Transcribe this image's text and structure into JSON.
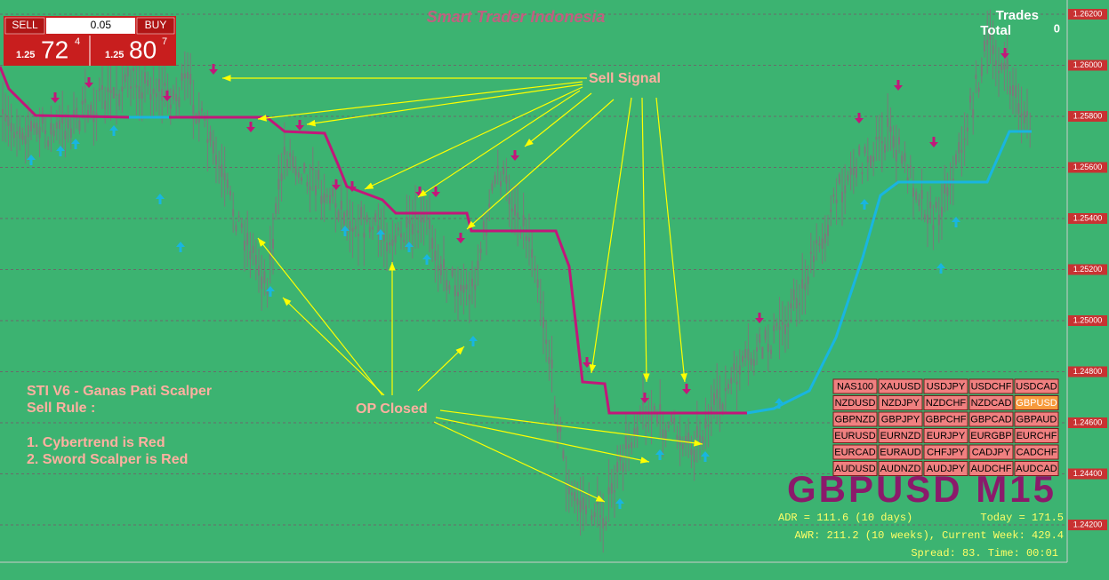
{
  "header": {
    "title": "Smart Trader Indonesia"
  },
  "trade_panel": {
    "sell": "SELL",
    "lot": "0.05",
    "buy": "BUY",
    "sell_price": {
      "big": "1.25",
      "main": "72",
      "small": "4"
    },
    "buy_price": {
      "big": "1.25",
      "main": "80",
      "small": "7"
    }
  },
  "trades": {
    "title": "Trades",
    "total_label": "Total",
    "total": "0"
  },
  "price_axis": [
    "1.26200",
    "1.26000",
    "1.25800",
    "1.25600",
    "1.25400",
    "1.25200",
    "1.25000",
    "1.24800",
    "1.24600",
    "1.24400",
    "1.24200"
  ],
  "annotations": {
    "sell_signal": "Sell Signal",
    "op_closed": "OP Closed"
  },
  "rules": {
    "title": "STI V6 - Ganas Pati Scalper",
    "subtitle": "Sell Rule :",
    "items": [
      "1. Cybertrend is Red",
      "2. Sword Scalper is Red"
    ]
  },
  "symbols": [
    [
      "NAS100",
      "XAUUSD",
      "USDJPY",
      "USDCHF",
      "USDCAD"
    ],
    [
      "NZDUSD",
      "NZDJPY",
      "NZDCHF",
      "NZDCAD",
      "GBPUSD"
    ],
    [
      "GBPNZD",
      "GBPJPY",
      "GBPCHF",
      "GBPCAD",
      "GBPAUD"
    ],
    [
      "EURUSD",
      "EURNZD",
      "EURJPY",
      "EURGBP",
      "EURCHF"
    ],
    [
      "EURCAD",
      "EURAUD",
      "CHFJPY",
      "CADJPY",
      "CADCHF"
    ],
    [
      "AUDUSD",
      "AUDNZD",
      "AUDJPY",
      "AUDCHF",
      "AUDCAD"
    ]
  ],
  "symbol_title": "GBPUSD M15",
  "stats": {
    "adr": "ADR = 111.6  (10 days)",
    "today": "Today = 171.5",
    "awr": "AWR: 211.2 (10 weeks), Current Week: 429.4",
    "spread": "Spread: 83. Time: 00:01"
  }
}
